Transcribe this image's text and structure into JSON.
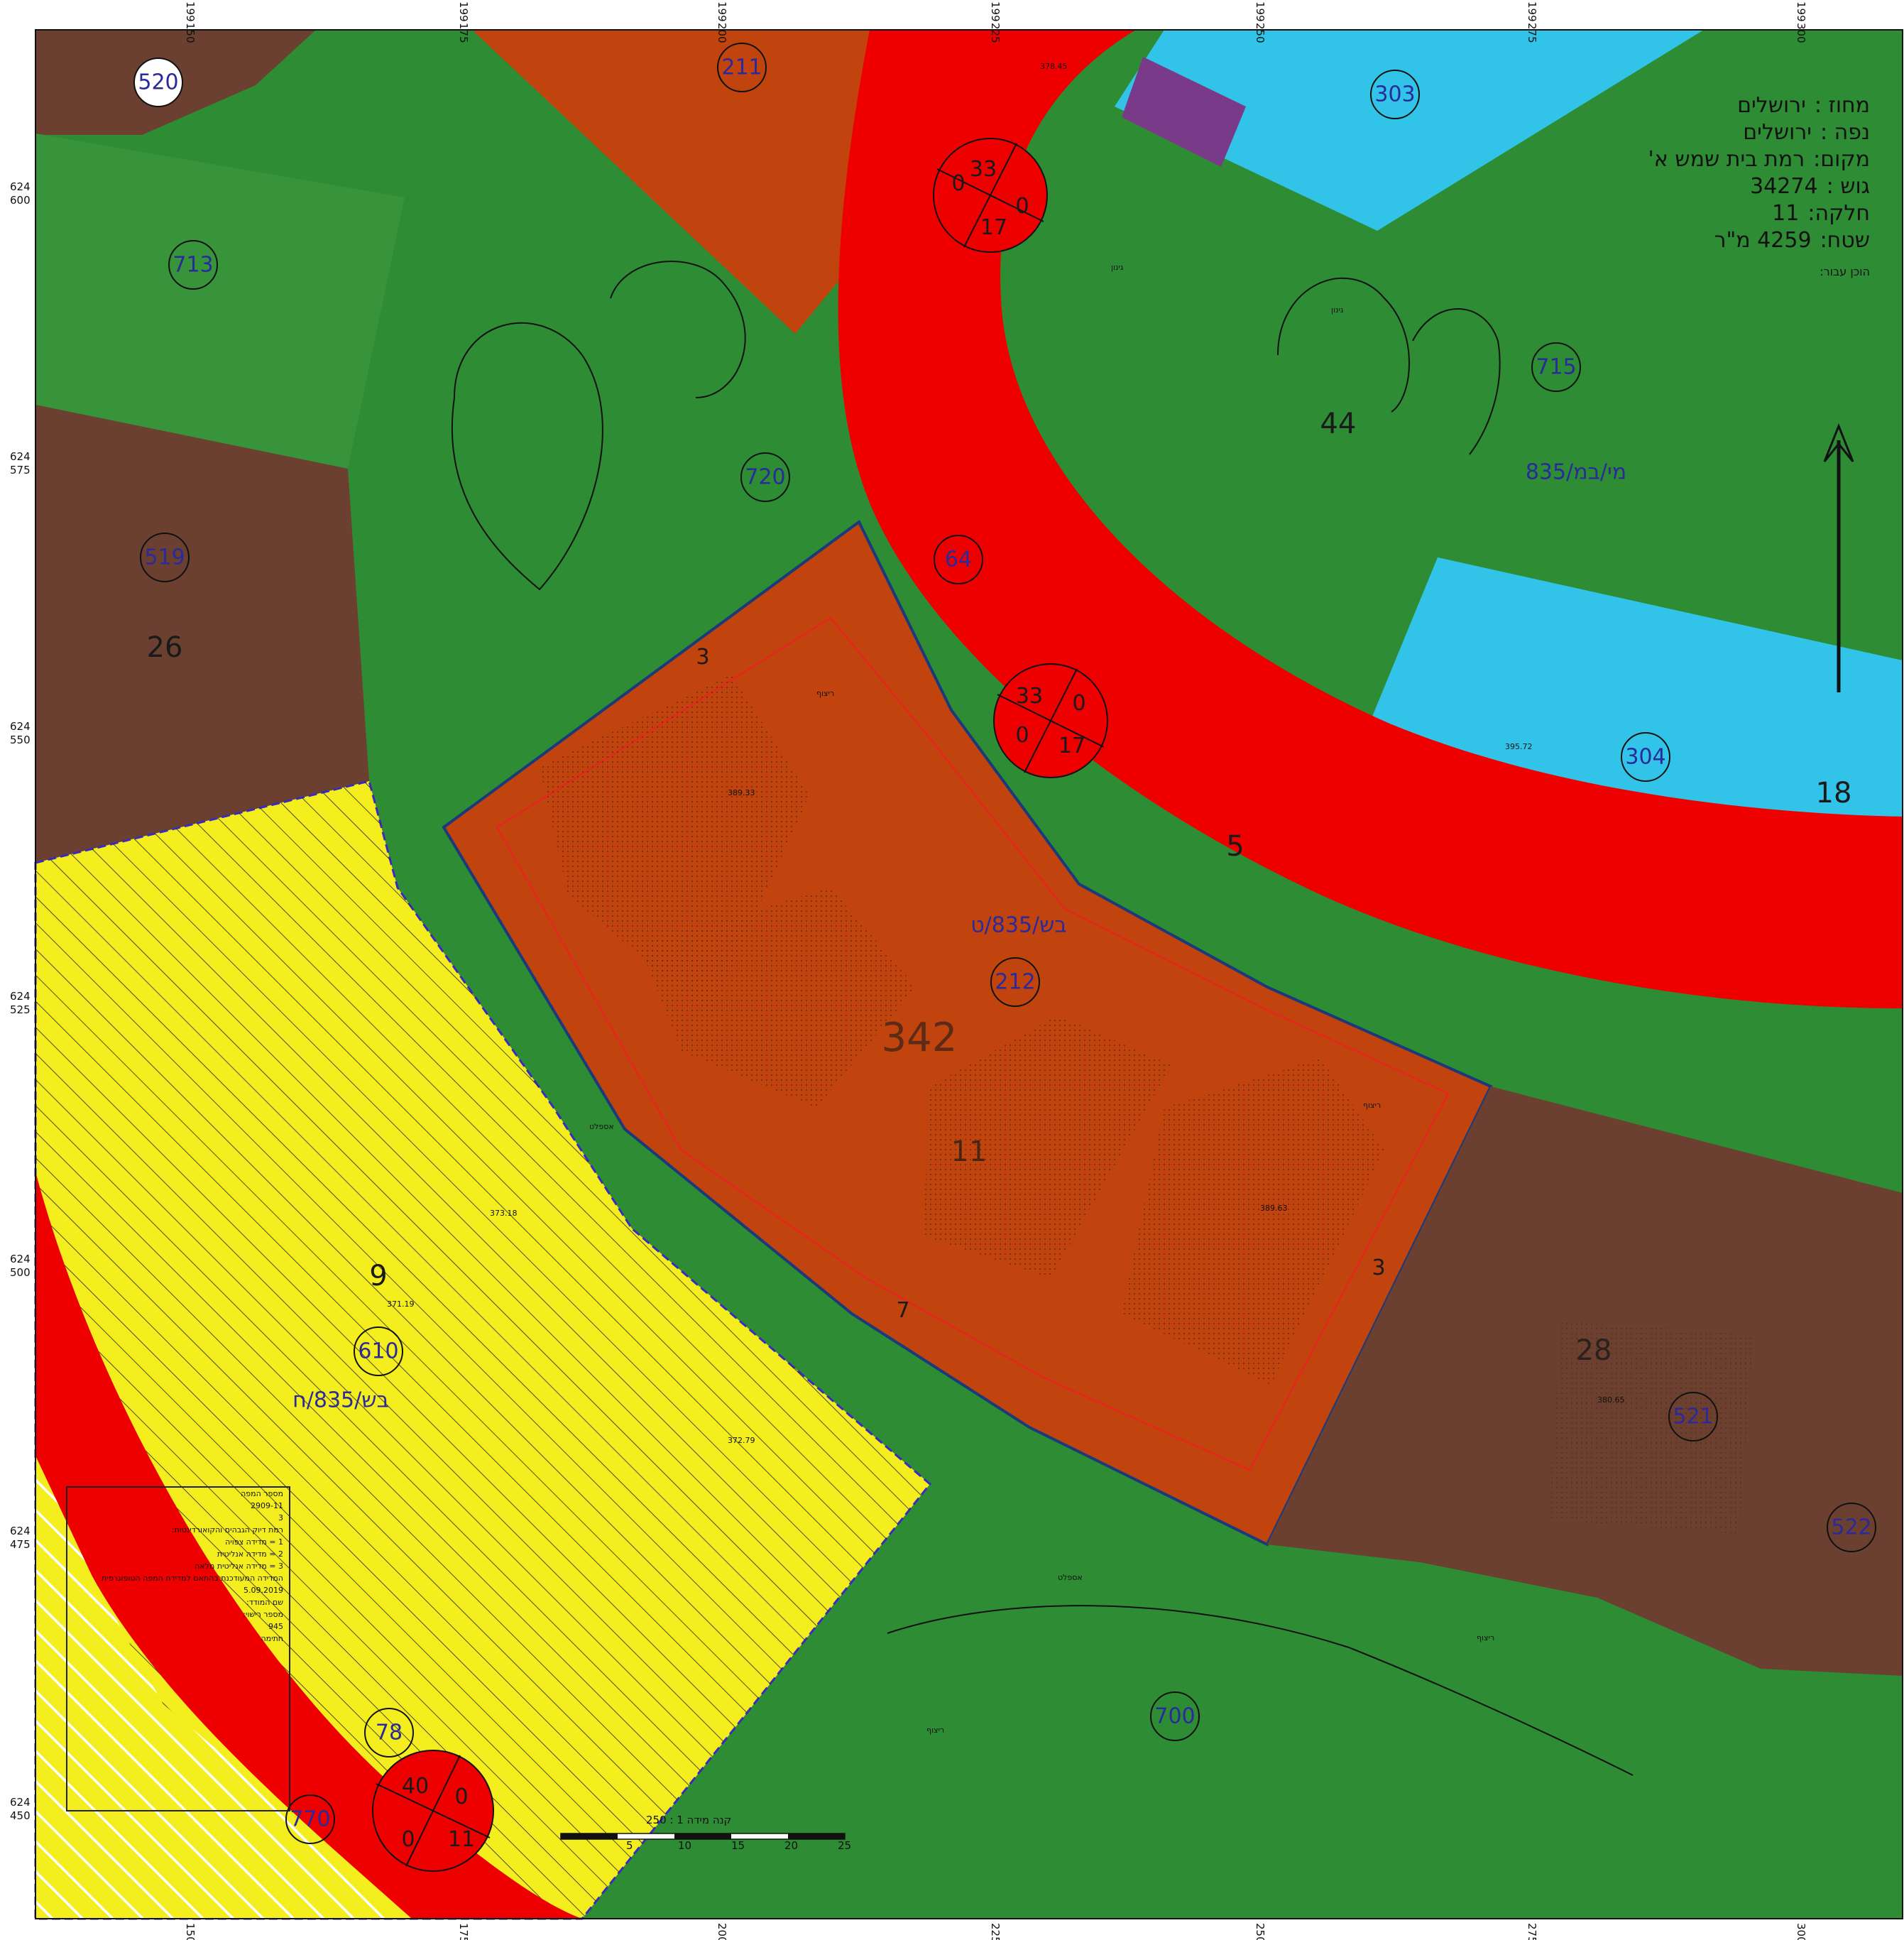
{
  "info": {
    "district_label": "מחוז :",
    "district": "ירושלים",
    "subdistrict_label": "נפה :",
    "subdistrict": "ירושלים",
    "place_label": "מקום:",
    "place": "רמת בית שמש א'",
    "block_label": "גוש :",
    "block": "34274",
    "parcel_label": "חלקה:",
    "parcel": "11",
    "area_label": "שטח:",
    "area": "4259 מ\"ר",
    "prepared_label": "הוכן עבור:"
  },
  "plots": {
    "p520": "520",
    "p211": "211",
    "p303": "303",
    "p713": "713",
    "p720": "720",
    "p715": "715",
    "p519": "519",
    "p64": "64",
    "p304": "304",
    "p212": "212",
    "p610": "610",
    "p521": "521",
    "p522": "522",
    "p700": "700",
    "p78": "78",
    "p770": "770"
  },
  "numbers": {
    "n44": "44",
    "n26": "26",
    "n18": "18",
    "n5": "5",
    "n342": "342",
    "n11": "11",
    "n9": "9",
    "n28": "28",
    "n3a": "3",
    "n3b": "3",
    "n7": "7"
  },
  "plans": {
    "plan_green": "מי/במ/835",
    "plan_center": "בש/835/ט",
    "plan_yellow": "בש/835/ח"
  },
  "roundabouts": {
    "r1": [
      "33",
      "0",
      "17",
      "0"
    ],
    "r2": [
      "33",
      "0",
      "17",
      "0"
    ],
    "r3": [
      "40",
      "0",
      "11",
      "0"
    ]
  },
  "axis": {
    "top_ticks": [
      "150",
      "175",
      "200",
      "225",
      "250",
      "275",
      "300"
    ],
    "top_prefix": "199",
    "left_ticks": [
      "600",
      "575",
      "550",
      "525",
      "500",
      "475",
      "450"
    ],
    "left_prefix": "624"
  },
  "scale": {
    "label": "קנה מידה 1 : 250",
    "ticks": [
      "5",
      "10",
      "15",
      "20",
      "25"
    ]
  },
  "legend": {
    "title": "מספר המפה",
    "map_number": "2909-11",
    "sheet": "3",
    "line1": "רמת דיוק הגבהים והקואורדינטות:",
    "line2": "1 = מדידה צפויה",
    "line3": "2 = מדידה אנליטית",
    "line4": "3 = מדידה אנליטית מלאה",
    "note": "המדידה המעודכנת בהתאם למדידת המפה הטופוגרפית",
    "date": "5.09.2019",
    "surveyor_label": "שם המודד:",
    "license_label": "מספר רישוי:",
    "license": "945",
    "signature_label": "חתימה"
  },
  "labels": {
    "garden": "גינון",
    "paving": "ריצוף",
    "asphalt": "אספלט",
    "spot1": "378.45",
    "spot2": "395.72",
    "spot3": "389.33",
    "spot4": "389.63",
    "spot5": "373.18",
    "spot6": "372.79",
    "spot7": "380.65",
    "spot8": "371.19"
  }
}
